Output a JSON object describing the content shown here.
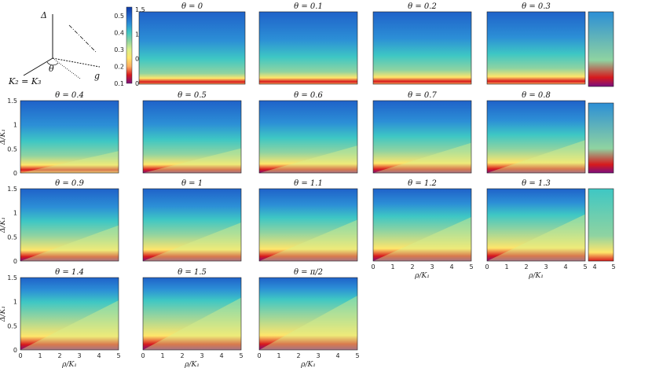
{
  "schematic": {
    "labels": [
      "Δ",
      "θ",
      "K₂ = K₃",
      "g"
    ]
  },
  "colorbar": {
    "ticks": [
      "0.1",
      "0.2",
      "0.3",
      "0.4",
      "0.5"
    ],
    "ticks_right": [
      "0",
      "0.5",
      "1",
      "1.5"
    ],
    "colors": [
      "#7a0f7f",
      "#d7191c",
      "#fdae61",
      "#ffe66b",
      "#d9ef8b",
      "#8fd3a1",
      "#3ec7c4",
      "#2c8fd6",
      "#1f62c9",
      "#0d3aa6"
    ]
  },
  "axes": {
    "xlabel": "ρ/K₁",
    "ylabel": "Δ/K₁",
    "xticks": [
      "0",
      "1",
      "2",
      "3",
      "4",
      "5"
    ],
    "yticks": [
      "0",
      "0.5",
      "1",
      "1.5"
    ],
    "xticks_small": [
      "4",
      "5"
    ]
  },
  "chart_data": {
    "type": "heatmap",
    "x_range": [
      0,
      5
    ],
    "y_range": [
      0,
      1.5
    ],
    "panels": [
      {
        "title": "θ = 0",
        "theta": 0
      },
      {
        "title": "θ = 0.1",
        "theta": 0.1
      },
      {
        "title": "θ = 0.2",
        "theta": 0.2
      },
      {
        "title": "θ = 0.3",
        "theta": 0.3
      },
      {
        "title": "θ = 0.4",
        "theta": 0.4
      },
      {
        "title": "θ = 0.5",
        "theta": 0.5
      },
      {
        "title": "θ = 0.6",
        "theta": 0.6
      },
      {
        "title": "θ = 0.7",
        "theta": 0.7
      },
      {
        "title": "θ = 0.8",
        "theta": 0.8
      },
      {
        "title": "θ = 0.9",
        "theta": 0.9
      },
      {
        "title": "θ = 1",
        "theta": 1.0
      },
      {
        "title": "θ = 1.1",
        "theta": 1.1
      },
      {
        "title": "θ = 1.2",
        "theta": 1.2
      },
      {
        "title": "θ = 1.3",
        "theta": 1.3
      },
      {
        "title": "θ = 1.4",
        "theta": 1.4
      },
      {
        "title": "θ = 1.5",
        "theta": 1.5
      },
      {
        "title": "θ = π/2",
        "theta": 1.5708
      }
    ]
  }
}
